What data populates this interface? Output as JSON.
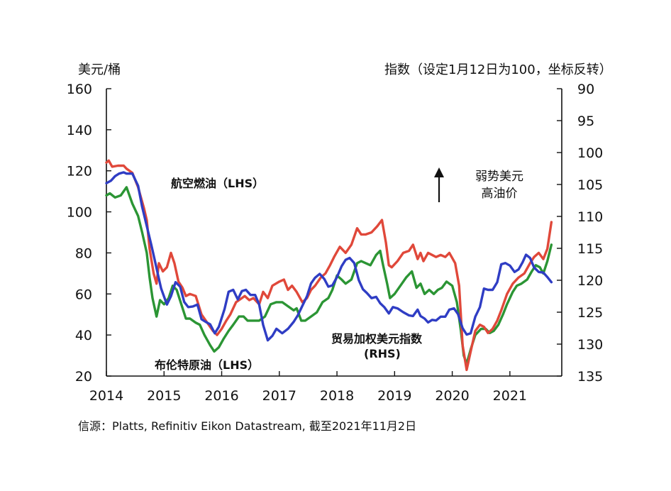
{
  "chart_data": {
    "type": "line",
    "left_axis_label": "美元/桶",
    "right_axis_label": "指数（设定1月12日为100，坐标反转）",
    "x_ticks": [
      "2014",
      "2015",
      "2016",
      "2017",
      "2018",
      "2019",
      "2020",
      "2021"
    ],
    "xlim": [
      2014,
      2021.9
    ],
    "left_ylim": [
      20,
      160
    ],
    "left_ticks": [
      "160",
      "140",
      "120",
      "100",
      "80",
      "60",
      "40",
      "20"
    ],
    "right_ylim": [
      90,
      135
    ],
    "right_inverted": true,
    "right_ticks": [
      "90",
      "95",
      "100",
      "105",
      "110",
      "115",
      "120",
      "125",
      "130",
      "135"
    ],
    "annotation": {
      "line1": "弱势美元",
      "line2": "高油价"
    },
    "source": "信源：Platts, Refinitiv Eikon Datastream, 截至2021年11月2日",
    "series": [
      {
        "name": "航空燃油（LHS）",
        "axis": "left",
        "color": "#e0483a",
        "points": [
          [
            2014.0,
            124
          ],
          [
            2014.04,
            125
          ],
          [
            2014.1,
            122
          ],
          [
            2014.2,
            122.5
          ],
          [
            2014.3,
            122.5
          ],
          [
            2014.35,
            121
          ],
          [
            2014.45,
            119
          ],
          [
            2014.55,
            112
          ],
          [
            2014.65,
            102
          ],
          [
            2014.7,
            96
          ],
          [
            2014.75,
            82
          ],
          [
            2014.82,
            70
          ],
          [
            2014.87,
            65
          ],
          [
            2014.91,
            75
          ],
          [
            2014.98,
            71
          ],
          [
            2015.05,
            73
          ],
          [
            2015.12,
            80
          ],
          [
            2015.18,
            75
          ],
          [
            2015.25,
            66
          ],
          [
            2015.32,
            63
          ],
          [
            2015.38,
            59
          ],
          [
            2015.45,
            60
          ],
          [
            2015.55,
            59
          ],
          [
            2015.65,
            50
          ],
          [
            2015.75,
            46
          ],
          [
            2015.85,
            42
          ],
          [
            2015.92,
            40
          ],
          [
            2016.0,
            43
          ],
          [
            2016.08,
            47
          ],
          [
            2016.15,
            50
          ],
          [
            2016.25,
            56
          ],
          [
            2016.35,
            58
          ],
          [
            2016.4,
            59
          ],
          [
            2016.48,
            57
          ],
          [
            2016.55,
            58
          ],
          [
            2016.65,
            55
          ],
          [
            2016.72,
            61
          ],
          [
            2016.8,
            58
          ],
          [
            2016.88,
            64
          ],
          [
            2017.0,
            66
          ],
          [
            2017.08,
            67
          ],
          [
            2017.15,
            62
          ],
          [
            2017.22,
            64
          ],
          [
            2017.3,
            61
          ],
          [
            2017.4,
            56
          ],
          [
            2017.48,
            58
          ],
          [
            2017.55,
            62
          ],
          [
            2017.62,
            64
          ],
          [
            2017.72,
            68
          ],
          [
            2017.8,
            70
          ],
          [
            2017.88,
            74
          ],
          [
            2017.95,
            78
          ],
          [
            2018.05,
            83
          ],
          [
            2018.15,
            80
          ],
          [
            2018.25,
            84
          ],
          [
            2018.35,
            92
          ],
          [
            2018.42,
            89
          ],
          [
            2018.5,
            89
          ],
          [
            2018.6,
            90
          ],
          [
            2018.7,
            93
          ],
          [
            2018.78,
            96
          ],
          [
            2018.85,
            85
          ],
          [
            2018.9,
            74
          ],
          [
            2018.95,
            73
          ],
          [
            2019.05,
            76
          ],
          [
            2019.15,
            80
          ],
          [
            2019.25,
            81
          ],
          [
            2019.32,
            84
          ],
          [
            2019.4,
            77
          ],
          [
            2019.45,
            80
          ],
          [
            2019.5,
            76
          ],
          [
            2019.58,
            80
          ],
          [
            2019.65,
            79
          ],
          [
            2019.72,
            78
          ],
          [
            2019.8,
            79
          ],
          [
            2019.88,
            78
          ],
          [
            2019.95,
            80
          ],
          [
            2020.05,
            75
          ],
          [
            2020.12,
            64
          ],
          [
            2020.18,
            35
          ],
          [
            2020.25,
            23
          ],
          [
            2020.32,
            32
          ],
          [
            2020.4,
            42
          ],
          [
            2020.48,
            45
          ],
          [
            2020.55,
            44
          ],
          [
            2020.62,
            41
          ],
          [
            2020.7,
            43
          ],
          [
            2020.78,
            47
          ],
          [
            2020.85,
            52
          ],
          [
            2020.95,
            60
          ],
          [
            2021.05,
            65
          ],
          [
            2021.15,
            68
          ],
          [
            2021.25,
            70
          ],
          [
            2021.35,
            75
          ],
          [
            2021.42,
            78
          ],
          [
            2021.5,
            80
          ],
          [
            2021.58,
            77
          ],
          [
            2021.65,
            82
          ],
          [
            2021.72,
            95
          ]
        ]
      },
      {
        "name": "布伦特原油（LHS）",
        "axis": "left",
        "color": "#2b9534",
        "points": [
          [
            2014.0,
            108
          ],
          [
            2014.06,
            109
          ],
          [
            2014.15,
            107
          ],
          [
            2014.25,
            108
          ],
          [
            2014.35,
            112
          ],
          [
            2014.45,
            104
          ],
          [
            2014.55,
            98
          ],
          [
            2014.62,
            90
          ],
          [
            2014.7,
            80
          ],
          [
            2014.75,
            68
          ],
          [
            2014.8,
            58
          ],
          [
            2014.87,
            49
          ],
          [
            2014.93,
            57
          ],
          [
            2015.0,
            55
          ],
          [
            2015.08,
            58
          ],
          [
            2015.15,
            64
          ],
          [
            2015.22,
            62
          ],
          [
            2015.3,
            55
          ],
          [
            2015.38,
            48
          ],
          [
            2015.45,
            48
          ],
          [
            2015.55,
            46
          ],
          [
            2015.62,
            45
          ],
          [
            2015.7,
            40
          ],
          [
            2015.8,
            35
          ],
          [
            2015.87,
            32
          ],
          [
            2015.95,
            34
          ],
          [
            2016.03,
            38
          ],
          [
            2016.12,
            42
          ],
          [
            2016.2,
            45
          ],
          [
            2016.3,
            49
          ],
          [
            2016.38,
            49
          ],
          [
            2016.45,
            47
          ],
          [
            2016.55,
            47
          ],
          [
            2016.65,
            47
          ],
          [
            2016.75,
            49
          ],
          [
            2016.85,
            55
          ],
          [
            2016.95,
            56
          ],
          [
            2017.05,
            56
          ],
          [
            2017.15,
            54
          ],
          [
            2017.25,
            52
          ],
          [
            2017.3,
            53
          ],
          [
            2017.38,
            47
          ],
          [
            2017.45,
            47
          ],
          [
            2017.55,
            49
          ],
          [
            2017.65,
            51
          ],
          [
            2017.75,
            56
          ],
          [
            2017.85,
            58
          ],
          [
            2017.92,
            62
          ],
          [
            2018.0,
            69
          ],
          [
            2018.08,
            67
          ],
          [
            2018.15,
            65
          ],
          [
            2018.25,
            67
          ],
          [
            2018.35,
            75
          ],
          [
            2018.42,
            76
          ],
          [
            2018.5,
            75
          ],
          [
            2018.58,
            74
          ],
          [
            2018.68,
            79
          ],
          [
            2018.75,
            81
          ],
          [
            2018.8,
            74
          ],
          [
            2018.87,
            65
          ],
          [
            2018.92,
            58
          ],
          [
            2019.0,
            60
          ],
          [
            2019.1,
            64
          ],
          [
            2019.2,
            68
          ],
          [
            2019.3,
            71
          ],
          [
            2019.38,
            63
          ],
          [
            2019.45,
            65
          ],
          [
            2019.52,
            60
          ],
          [
            2019.6,
            62
          ],
          [
            2019.68,
            60
          ],
          [
            2019.75,
            62
          ],
          [
            2019.82,
            63
          ],
          [
            2019.9,
            66
          ],
          [
            2020.0,
            64
          ],
          [
            2020.08,
            56
          ],
          [
            2020.15,
            42
          ],
          [
            2020.2,
            30
          ],
          [
            2020.25,
            26
          ],
          [
            2020.32,
            33
          ],
          [
            2020.4,
            40
          ],
          [
            2020.5,
            43
          ],
          [
            2020.58,
            43
          ],
          [
            2020.65,
            41
          ],
          [
            2020.72,
            42
          ],
          [
            2020.8,
            45
          ],
          [
            2020.88,
            50
          ],
          [
            2020.95,
            55
          ],
          [
            2021.05,
            61
          ],
          [
            2021.12,
            64
          ],
          [
            2021.2,
            65
          ],
          [
            2021.3,
            67
          ],
          [
            2021.38,
            71
          ],
          [
            2021.45,
            74
          ],
          [
            2021.52,
            73
          ],
          [
            2021.58,
            70
          ],
          [
            2021.65,
            76
          ],
          [
            2021.72,
            84
          ]
        ]
      },
      {
        "name": "贸易加权美元指数（RHS）",
        "axis": "right",
        "color": "#2f3dc4",
        "points": [
          [
            2014.0,
            104.8
          ],
          [
            2014.08,
            104.4
          ],
          [
            2014.15,
            103.7
          ],
          [
            2014.22,
            103.3
          ],
          [
            2014.3,
            103.1
          ],
          [
            2014.35,
            103.3
          ],
          [
            2014.45,
            103.3
          ],
          [
            2014.55,
            105.2
          ],
          [
            2014.62,
            108.5
          ],
          [
            2014.7,
            111.5
          ],
          [
            2014.78,
            114.5
          ],
          [
            2014.85,
            117.3
          ],
          [
            2014.9,
            119.3
          ],
          [
            2014.95,
            121.3
          ],
          [
            2015.05,
            123.8
          ],
          [
            2015.12,
            122.5
          ],
          [
            2015.2,
            120.3
          ],
          [
            2015.28,
            121
          ],
          [
            2015.35,
            123.4
          ],
          [
            2015.42,
            124.2
          ],
          [
            2015.5,
            124.1
          ],
          [
            2015.58,
            123.8
          ],
          [
            2015.65,
            126.1
          ],
          [
            2015.72,
            126.5
          ],
          [
            2015.8,
            126.9
          ],
          [
            2015.88,
            128.3
          ],
          [
            2015.95,
            127.3
          ],
          [
            2016.05,
            124.5
          ],
          [
            2016.12,
            121.8
          ],
          [
            2016.2,
            121.5
          ],
          [
            2016.28,
            123
          ],
          [
            2016.35,
            121.7
          ],
          [
            2016.42,
            121.5
          ],
          [
            2016.5,
            122.3
          ],
          [
            2016.58,
            122.3
          ],
          [
            2016.65,
            123.8
          ],
          [
            2016.72,
            127
          ],
          [
            2016.8,
            129.4
          ],
          [
            2016.88,
            128.7
          ],
          [
            2016.95,
            127.6
          ],
          [
            2017.05,
            128.3
          ],
          [
            2017.15,
            127.6
          ],
          [
            2017.25,
            126.5
          ],
          [
            2017.32,
            125.5
          ],
          [
            2017.4,
            124
          ],
          [
            2017.48,
            122.5
          ],
          [
            2017.55,
            120.5
          ],
          [
            2017.62,
            119.6
          ],
          [
            2017.7,
            119
          ],
          [
            2017.78,
            119.8
          ],
          [
            2017.85,
            121
          ],
          [
            2017.92,
            120.8
          ],
          [
            2018.0,
            119.5
          ],
          [
            2018.08,
            117.8
          ],
          [
            2018.15,
            116.8
          ],
          [
            2018.22,
            116.5
          ],
          [
            2018.3,
            117.3
          ],
          [
            2018.38,
            120
          ],
          [
            2018.45,
            121.4
          ],
          [
            2018.52,
            122
          ],
          [
            2018.6,
            122.8
          ],
          [
            2018.68,
            122.6
          ],
          [
            2018.75,
            123.6
          ],
          [
            2018.82,
            124.2
          ],
          [
            2018.9,
            125.2
          ],
          [
            2018.97,
            124.2
          ],
          [
            2019.05,
            124.4
          ],
          [
            2019.15,
            125
          ],
          [
            2019.25,
            125.5
          ],
          [
            2019.32,
            125.6
          ],
          [
            2019.4,
            124.6
          ],
          [
            2019.45,
            125.6
          ],
          [
            2019.52,
            126
          ],
          [
            2019.58,
            126.6
          ],
          [
            2019.65,
            126.2
          ],
          [
            2019.72,
            126.3
          ],
          [
            2019.8,
            125.7
          ],
          [
            2019.88,
            125.7
          ],
          [
            2019.95,
            124.6
          ],
          [
            2020.03,
            124.4
          ],
          [
            2020.1,
            125.3
          ],
          [
            2020.18,
            127.5
          ],
          [
            2020.25,
            128.5
          ],
          [
            2020.32,
            128.3
          ],
          [
            2020.4,
            125.7
          ],
          [
            2020.48,
            124.2
          ],
          [
            2020.55,
            121.3
          ],
          [
            2020.62,
            121.5
          ],
          [
            2020.7,
            121.5
          ],
          [
            2020.78,
            120.3
          ],
          [
            2020.85,
            117.5
          ],
          [
            2020.92,
            117.3
          ],
          [
            2021.0,
            117.7
          ],
          [
            2021.08,
            118.7
          ],
          [
            2021.15,
            118.3
          ],
          [
            2021.22,
            117.2
          ],
          [
            2021.28,
            116
          ],
          [
            2021.35,
            116.5
          ],
          [
            2021.42,
            118
          ],
          [
            2021.5,
            118.7
          ],
          [
            2021.58,
            118.8
          ],
          [
            2021.65,
            119.5
          ],
          [
            2021.72,
            120.3
          ]
        ]
      }
    ],
    "series_labels": [
      {
        "line1": "航空燃油（LHS）",
        "line2": ""
      },
      {
        "line1": "布伦特原油（LHS）",
        "line2": ""
      },
      {
        "line1": "贸易加权美元指数",
        "line2": "(RHS)"
      }
    ]
  }
}
